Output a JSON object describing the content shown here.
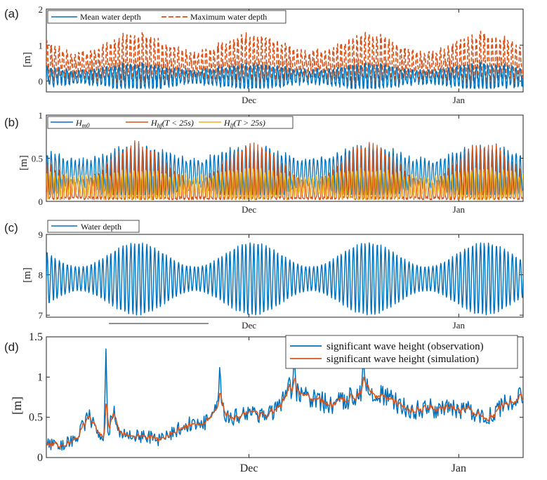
{
  "panels": {
    "a": {
      "label": "(a)",
      "ylabel": "[m]"
    },
    "b": {
      "label": "(b)",
      "ylabel": "[m]"
    },
    "c": {
      "label": "(c)",
      "ylabel": "[m]"
    },
    "d": {
      "label": "(d)",
      "ylabel": "[m]"
    }
  },
  "colors": {
    "blue": "#0072BD",
    "orange": "#D95319",
    "yellow": "#EDB120"
  },
  "chart_data": [
    {
      "id": "a",
      "type": "line",
      "xlabel": "",
      "ylabel": "[m]",
      "ylim": [
        -0.3,
        2
      ],
      "yticks": [
        0,
        1,
        2
      ],
      "xticks": [
        {
          "label": "Dec",
          "t": 0.425
        },
        {
          "label": "Jan",
          "t": 0.865
        }
      ],
      "legend": "top-left",
      "series": [
        {
          "name": "Mean water depth",
          "style": "solid",
          "color": "#0072BD",
          "mean": 0.12,
          "amp_base": 0.18,
          "amp_mod": 0.18,
          "floor": -0.2
        },
        {
          "name": "Maximum water depth",
          "style": "dashed",
          "color": "#D95319",
          "mean": 0.45,
          "amp_base": 0.35,
          "amp_mod": 0.35,
          "floor": -0.15
        }
      ]
    },
    {
      "id": "b",
      "type": "line",
      "xlabel": "",
      "ylabel": "[m]",
      "ylim": [
        0,
        1
      ],
      "yticks": [
        0,
        0.5,
        1
      ],
      "xticks": [
        {
          "label": "Dec",
          "t": 0.425
        },
        {
          "label": "Jan",
          "t": 0.865
        }
      ],
      "legend": "top",
      "series": [
        {
          "name": "Hm0",
          "legend_main": "H",
          "legend_sub": "m0",
          "legend_rest": "",
          "color": "#0072BD",
          "base": 0.32,
          "amp_base": 0.22,
          "amp_mod": 0.25
        },
        {
          "name": "Hhf(T < 25s)",
          "legend_main": "H",
          "legend_sub": "hf",
          "legend_rest": "(T < 25s)",
          "color": "#D95319",
          "base": 0.12,
          "amp_base": 0.2,
          "amp_mod": 0.45
        },
        {
          "name": "Hlf(T > 25s)",
          "legend_main": "H",
          "legend_sub": "lf",
          "legend_rest": "(T > 25s)",
          "color": "#EDB120",
          "base": 0.18,
          "amp_base": 0.1,
          "amp_mod": 0.08
        }
      ]
    },
    {
      "id": "c",
      "type": "line",
      "xlabel": "",
      "ylabel": "[m]",
      "ylim": [
        6.95,
        9
      ],
      "yticks": [
        7,
        8,
        9
      ],
      "xticks": [
        {
          "label": "Dec",
          "t": 0.425
        },
        {
          "label": "Jan",
          "t": 0.865
        }
      ],
      "legend": "top-left",
      "series": [
        {
          "name": "Water depth",
          "color": "#0072BD",
          "mean": 7.9,
          "amp_base": 0.3,
          "amp_mod": 0.6
        }
      ]
    },
    {
      "id": "d",
      "type": "line",
      "xlabel": "",
      "ylabel": "[m]",
      "ylim": [
        0,
        1.5
      ],
      "yticks": [
        0,
        0.5,
        1,
        1.5
      ],
      "xticks": [
        {
          "label": "Dec",
          "t": 0.425
        },
        {
          "label": "Jan",
          "t": 0.865
        }
      ],
      "legend": "top-right",
      "series": [
        {
          "name": "significant wave height (observation)",
          "color": "#0072BD"
        },
        {
          "name": "significant wave height (simulation)",
          "color": "#D95319"
        }
      ],
      "envelope": [
        [
          0.0,
          0.17
        ],
        [
          0.03,
          0.15
        ],
        [
          0.06,
          0.22
        ],
        [
          0.09,
          0.52
        ],
        [
          0.105,
          0.3
        ],
        [
          0.13,
          0.28
        ],
        [
          0.14,
          0.6
        ],
        [
          0.155,
          0.28
        ],
        [
          0.2,
          0.27
        ],
        [
          0.24,
          0.22
        ],
        [
          0.27,
          0.33
        ],
        [
          0.3,
          0.42
        ],
        [
          0.33,
          0.42
        ],
        [
          0.36,
          0.6
        ],
        [
          0.39,
          0.5
        ],
        [
          0.43,
          0.58
        ],
        [
          0.46,
          0.52
        ],
        [
          0.49,
          0.62
        ],
        [
          0.51,
          0.85
        ],
        [
          0.53,
          0.8
        ],
        [
          0.56,
          0.72
        ],
        [
          0.6,
          0.65
        ],
        [
          0.63,
          0.72
        ],
        [
          0.67,
          0.88
        ],
        [
          0.71,
          0.75
        ],
        [
          0.74,
          0.65
        ],
        [
          0.77,
          0.58
        ],
        [
          0.8,
          0.62
        ],
        [
          0.83,
          0.6
        ],
        [
          0.86,
          0.6
        ],
        [
          0.89,
          0.58
        ],
        [
          0.92,
          0.48
        ],
        [
          0.95,
          0.62
        ],
        [
          0.98,
          0.72
        ],
        [
          1.0,
          0.74
        ]
      ],
      "spikes": [
        {
          "t": 0.125,
          "v": 1.35
        },
        {
          "t": 0.364,
          "v": 1.2
        },
        {
          "t": 0.52,
          "v": 1.28
        },
        {
          "t": 0.665,
          "v": 1.26
        }
      ]
    }
  ]
}
